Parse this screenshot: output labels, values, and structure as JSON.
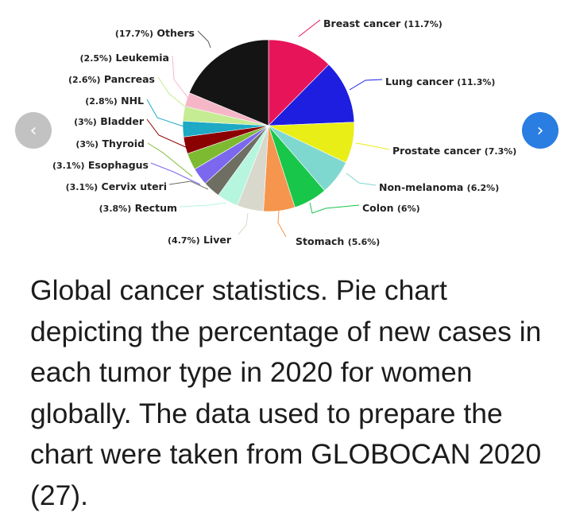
{
  "chart_data": {
    "type": "pie",
    "title": "",
    "slices": [
      {
        "label": "Breast cancer",
        "pct_text": "(11.7%)",
        "value": 11.7,
        "color": "#e8145a"
      },
      {
        "label": "Lung cancer",
        "pct_text": "(11.3%)",
        "value": 11.3,
        "color": "#1d1ee0"
      },
      {
        "label": "Prostate cancer",
        "pct_text": "(7.3%)",
        "value": 7.3,
        "color": "#e9ee17"
      },
      {
        "label": "Non-melanoma",
        "pct_text": "(6.2%)",
        "value": 6.2,
        "color": "#7fd8d0"
      },
      {
        "label": "Colon",
        "pct_text": "(6%)",
        "value": 6.0,
        "color": "#18c64a"
      },
      {
        "label": "Stomach",
        "pct_text": "(5.6%)",
        "value": 5.6,
        "color": "#f6954d"
      },
      {
        "label": "Liver",
        "pct_text": "(4.7%)",
        "value": 4.7,
        "color": "#d8d8cc"
      },
      {
        "label": "Rectum",
        "pct_text": "(3.8%)",
        "value": 3.8,
        "color": "#b6f5de"
      },
      {
        "label": "Cervix uteri",
        "pct_text": "(3.1%)",
        "value": 3.1,
        "color": "#6e6e62"
      },
      {
        "label": "Esophagus",
        "pct_text": "(3.1%)",
        "value": 3.1,
        "color": "#7b68ee"
      },
      {
        "label": "Thyroid",
        "pct_text": "(3%)",
        "value": 3.0,
        "color": "#7dba32"
      },
      {
        "label": "Bladder",
        "pct_text": "(3%)",
        "value": 3.0,
        "color": "#8b0000"
      },
      {
        "label": "NHL",
        "pct_text": "(2.8%)",
        "value": 2.8,
        "color": "#1ea9c4"
      },
      {
        "label": "Pancreas",
        "pct_text": "(2.6%)",
        "value": 2.6,
        "color": "#c5ec92"
      },
      {
        "label": "Leukemia",
        "pct_text": "(2.5%)",
        "value": 2.5,
        "color": "#f5b7c8"
      },
      {
        "label": "Others",
        "pct_text": "(17.7%)",
        "value": 17.7,
        "color": "#141414"
      }
    ],
    "legend": "none",
    "grid": false
  },
  "caption": "Global cancer statistics. Pie chart depicting the percentage of new cases in each tumor type in 2020 for women globally. The data used to prepare the chart were taken from GLOBOCAN 2020 (27).",
  "nav": {
    "prev_glyph": "‹",
    "next_glyph": "›",
    "prev_color": "#c2c2c2",
    "next_color": "#2a7de1"
  }
}
